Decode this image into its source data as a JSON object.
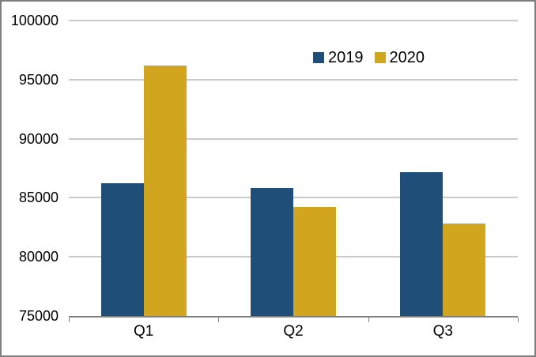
{
  "chart_data": {
    "type": "bar",
    "title": "",
    "categories": [
      "Q1",
      "Q2",
      "Q3"
    ],
    "series": [
      {
        "name": "2019",
        "color": "#1F4E79",
        "values": [
          86200,
          85800,
          87200
        ]
      },
      {
        "name": "2020",
        "color": "#D2A51E",
        "values": [
          96200,
          84200,
          82800
        ]
      }
    ],
    "xlabel": "",
    "ylabel": "",
    "ylim": [
      75000,
      100000
    ],
    "ytick_step": 5000,
    "y_tick_labels": [
      "75000",
      "80000",
      "85000",
      "90000",
      "95000",
      "100000"
    ],
    "grid": true,
    "legend_position": "top-center"
  },
  "colors": {
    "gridline": "#969696",
    "axis": "#808080",
    "frame": "#7F7F7F",
    "text": "#000000",
    "background": "#FFFFFF"
  }
}
